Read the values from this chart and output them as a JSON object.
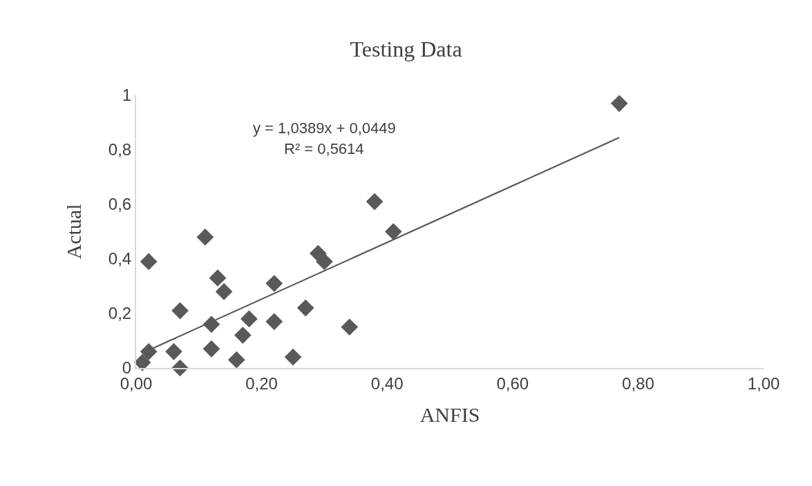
{
  "chart_data": {
    "type": "scatter",
    "title": "Testing Data",
    "xlabel": "ANFIS",
    "ylabel": "Actual",
    "annotations": [
      "y = 1,0389x + 0,0449",
      "R² = 0,5614"
    ],
    "xlim": [
      0,
      1
    ],
    "xticks": [
      {
        "value": 0,
        "label": "0,00"
      },
      {
        "value": 0.2,
        "label": "0,20"
      },
      {
        "value": 0.4,
        "label": "0,40"
      },
      {
        "value": 0.6,
        "label": "0,60"
      },
      {
        "value": 0.8,
        "label": "0,80"
      },
      {
        "value": 1,
        "label": "1,00"
      }
    ],
    "ylim": [
      0,
      1
    ],
    "yticks": [
      0,
      {
        "value": 0.2,
        "label": "0,2"
      },
      {
        "value": 0.4,
        "label": "0,4"
      },
      {
        "value": 0.6,
        "label": "0,6"
      },
      {
        "value": 0.8,
        "label": "0,8"
      },
      1
    ],
    "grid": false,
    "marker": "diamond",
    "series": [
      {
        "color": "#595959",
        "x": [
          0.02,
          0.11,
          0.13,
          0.14,
          0.07,
          0.22,
          0.29,
          0.3,
          0.27,
          0.12,
          0.18,
          0.22,
          0.17,
          0.34,
          0.02,
          0.06,
          0.01,
          0.07,
          0.12,
          0.16,
          0.25,
          0.38,
          0.41,
          0.77
        ],
        "values": [
          0.39,
          0.48,
          0.33,
          0.28,
          0.21,
          0.31,
          0.42,
          0.39,
          0.22,
          0.16,
          0.18,
          0.17,
          0.12,
          0.15,
          0.06,
          0.06,
          0.02,
          0.0,
          0.07,
          0.03,
          0.04,
          0.61,
          0.5,
          0.97
        ]
      },
      {
        "type": "line",
        "color": "#595959",
        "line_style": "solid",
        "marker": "none",
        "x": [
          0.01,
          0.77
        ],
        "values": [
          0.055,
          0.845
        ]
      }
    ]
  }
}
